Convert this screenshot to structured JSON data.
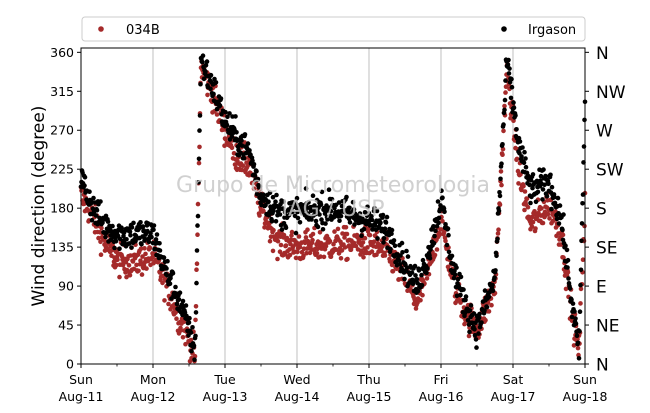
{
  "chart_data": {
    "type": "scatter",
    "ylabel": "Wind direction (degree)",
    "watermark": [
      "Grupo de Micrometeorologia",
      "IAG / USP"
    ],
    "ylim": [
      0,
      365
    ],
    "yticks": [
      0,
      45,
      90,
      135,
      180,
      225,
      270,
      315,
      360
    ],
    "compass_ticks": [
      {
        "value": 0,
        "label": "N"
      },
      {
        "value": 45,
        "label": "NE"
      },
      {
        "value": 90,
        "label": "E"
      },
      {
        "value": 135,
        "label": "SE"
      },
      {
        "value": 180,
        "label": "S"
      },
      {
        "value": 225,
        "label": "SW"
      },
      {
        "value": 270,
        "label": "W"
      },
      {
        "value": 315,
        "label": "NW"
      },
      {
        "value": 360,
        "label": "N"
      }
    ],
    "xlim": [
      "2019-08-11",
      "2019-08-18"
    ],
    "xticks": [
      {
        "date": "2019-08-11",
        "day": "Sun",
        "date_label": "Aug-11"
      },
      {
        "date": "2019-08-12",
        "day": "Mon",
        "date_label": "Aug-12"
      },
      {
        "date": "2019-08-13",
        "day": "Tue",
        "date_label": "Aug-13"
      },
      {
        "date": "2019-08-14",
        "day": "Wed",
        "date_label": "Aug-14"
      },
      {
        "date": "2019-08-15",
        "day": "Thu",
        "date_label": "Aug-15"
      },
      {
        "date": "2019-08-16",
        "day": "Fri",
        "date_label": "Aug-16"
      },
      {
        "date": "2019-08-17",
        "day": "Sat",
        "date_label": "Aug-17"
      },
      {
        "date": "2019-08-18",
        "day": "Sun",
        "date_label": "Aug-18"
      }
    ],
    "grid": "vertical",
    "legend": "top",
    "series": [
      {
        "name": "034B",
        "color": "#a52a2a",
        "trend": [
          [
            "2019-08-11T00:00",
            195
          ],
          [
            "2019-08-11T04:00",
            170
          ],
          [
            "2019-08-11T08:00",
            140
          ],
          [
            "2019-08-11T12:00",
            120
          ],
          [
            "2019-08-11T18:00",
            118
          ],
          [
            "2019-08-12T00:00",
            125
          ],
          [
            "2019-08-12T04:00",
            95
          ],
          [
            "2019-08-12T08:00",
            60
          ],
          [
            "2019-08-12T12:00",
            30
          ],
          [
            "2019-08-12T14:00",
            10
          ],
          [
            "2019-08-12T16:00",
            345
          ],
          [
            "2019-08-12T20:00",
            310
          ],
          [
            "2019-08-13T00:00",
            270
          ],
          [
            "2019-08-13T04:00",
            240
          ],
          [
            "2019-08-13T08:00",
            230
          ],
          [
            "2019-08-13T12:00",
            180
          ],
          [
            "2019-08-13T18:00",
            140
          ],
          [
            "2019-08-14T00:00",
            135
          ],
          [
            "2019-08-14T12:00",
            138
          ],
          [
            "2019-08-15T00:00",
            140
          ],
          [
            "2019-08-15T06:00",
            130
          ],
          [
            "2019-08-15T12:00",
            100
          ],
          [
            "2019-08-15T16:00",
            70
          ],
          [
            "2019-08-15T20:00",
            110
          ],
          [
            "2019-08-16T00:00",
            170
          ],
          [
            "2019-08-16T04:00",
            95
          ],
          [
            "2019-08-16T08:00",
            60
          ],
          [
            "2019-08-16T12:00",
            40
          ],
          [
            "2019-08-16T18:00",
            90
          ],
          [
            "2019-08-16T22:00",
            340
          ],
          [
            "2019-08-17T02:00",
            220
          ],
          [
            "2019-08-17T06:00",
            160
          ],
          [
            "2019-08-17T12:00",
            185
          ],
          [
            "2019-08-17T16:00",
            150
          ],
          [
            "2019-08-17T20:00",
            50
          ],
          [
            "2019-08-17T22:00",
            15
          ],
          [
            "2019-08-18T00:00",
            185
          ]
        ]
      },
      {
        "name": "Irgason",
        "color": "#000000",
        "trend": [
          [
            "2019-08-11T00:00",
            215
          ],
          [
            "2019-08-11T04:00",
            180
          ],
          [
            "2019-08-11T08:00",
            160
          ],
          [
            "2019-08-11T12:00",
            150
          ],
          [
            "2019-08-11T18:00",
            150
          ],
          [
            "2019-08-12T00:00",
            150
          ],
          [
            "2019-08-12T04:00",
            110
          ],
          [
            "2019-08-12T08:00",
            80
          ],
          [
            "2019-08-12T12:00",
            40
          ],
          [
            "2019-08-12T14:00",
            15
          ],
          [
            "2019-08-12T16:00",
            350
          ],
          [
            "2019-08-12T20:00",
            320
          ],
          [
            "2019-08-13T00:00",
            280
          ],
          [
            "2019-08-13T04:00",
            260
          ],
          [
            "2019-08-13T08:00",
            245
          ],
          [
            "2019-08-13T12:00",
            195
          ],
          [
            "2019-08-13T18:00",
            175
          ],
          [
            "2019-08-14T00:00",
            175
          ],
          [
            "2019-08-14T12:00",
            180
          ],
          [
            "2019-08-15T00:00",
            165
          ],
          [
            "2019-08-15T06:00",
            155
          ],
          [
            "2019-08-15T12:00",
            115
          ],
          [
            "2019-08-15T16:00",
            90
          ],
          [
            "2019-08-15T20:00",
            130
          ],
          [
            "2019-08-16T00:00",
            190
          ],
          [
            "2019-08-16T04:00",
            110
          ],
          [
            "2019-08-16T08:00",
            70
          ],
          [
            "2019-08-16T12:00",
            40
          ],
          [
            "2019-08-16T18:00",
            100
          ],
          [
            "2019-08-16T22:00",
            350
          ],
          [
            "2019-08-17T02:00",
            250
          ],
          [
            "2019-08-17T06:00",
            200
          ],
          [
            "2019-08-17T12:00",
            210
          ],
          [
            "2019-08-17T16:00",
            170
          ],
          [
            "2019-08-17T20:00",
            60
          ],
          [
            "2019-08-17T22:00",
            15
          ],
          [
            "2019-08-18T00:00",
            300
          ]
        ]
      }
    ]
  }
}
